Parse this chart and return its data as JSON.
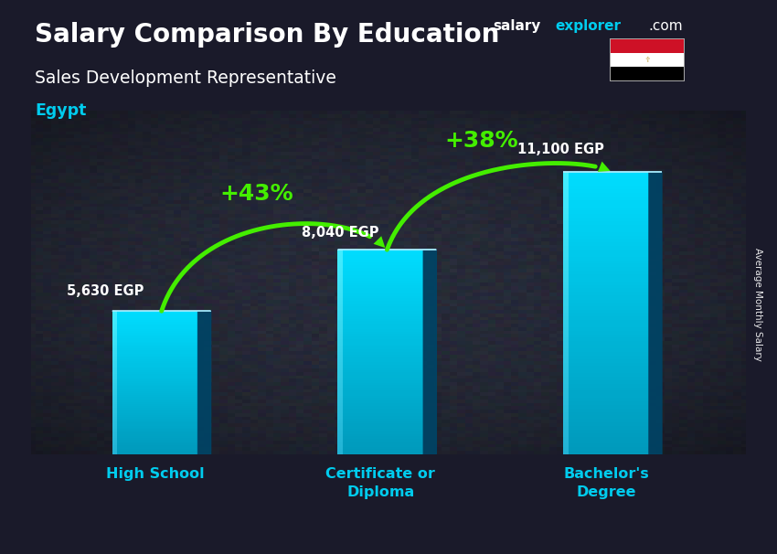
{
  "title_main": "Salary Comparison By Education",
  "title_sub": "Sales Development Representative",
  "title_country": "Egypt",
  "watermark_salary": "salary",
  "watermark_explorer": "explorer",
  "watermark_com": ".com",
  "categories": [
    "High School",
    "Certificate or\nDiploma",
    "Bachelor's\nDegree"
  ],
  "values": [
    5630,
    8040,
    11100
  ],
  "value_labels": [
    "5,630 EGP",
    "8,040 EGP",
    "11,100 EGP"
  ],
  "pct_changes": [
    "+43%",
    "+38%"
  ],
  "bar_front_color1": "#00aacc",
  "bar_front_color2": "#00ddff",
  "bar_top_color": "#88eeff",
  "bar_side_color": "#005577",
  "bg_overlay_color": "#1a1a2a",
  "text_color_white": "#ffffff",
  "text_color_cyan": "#00ccee",
  "text_color_green": "#55ff00",
  "arrow_color": "#44ee00",
  "ylabel": "Average Monthly Salary",
  "ylim": [
    0,
    13500
  ],
  "bar_width": 0.38,
  "x_positions": [
    0,
    1,
    2
  ],
  "figsize": [
    8.5,
    6.06
  ],
  "dpi": 100
}
